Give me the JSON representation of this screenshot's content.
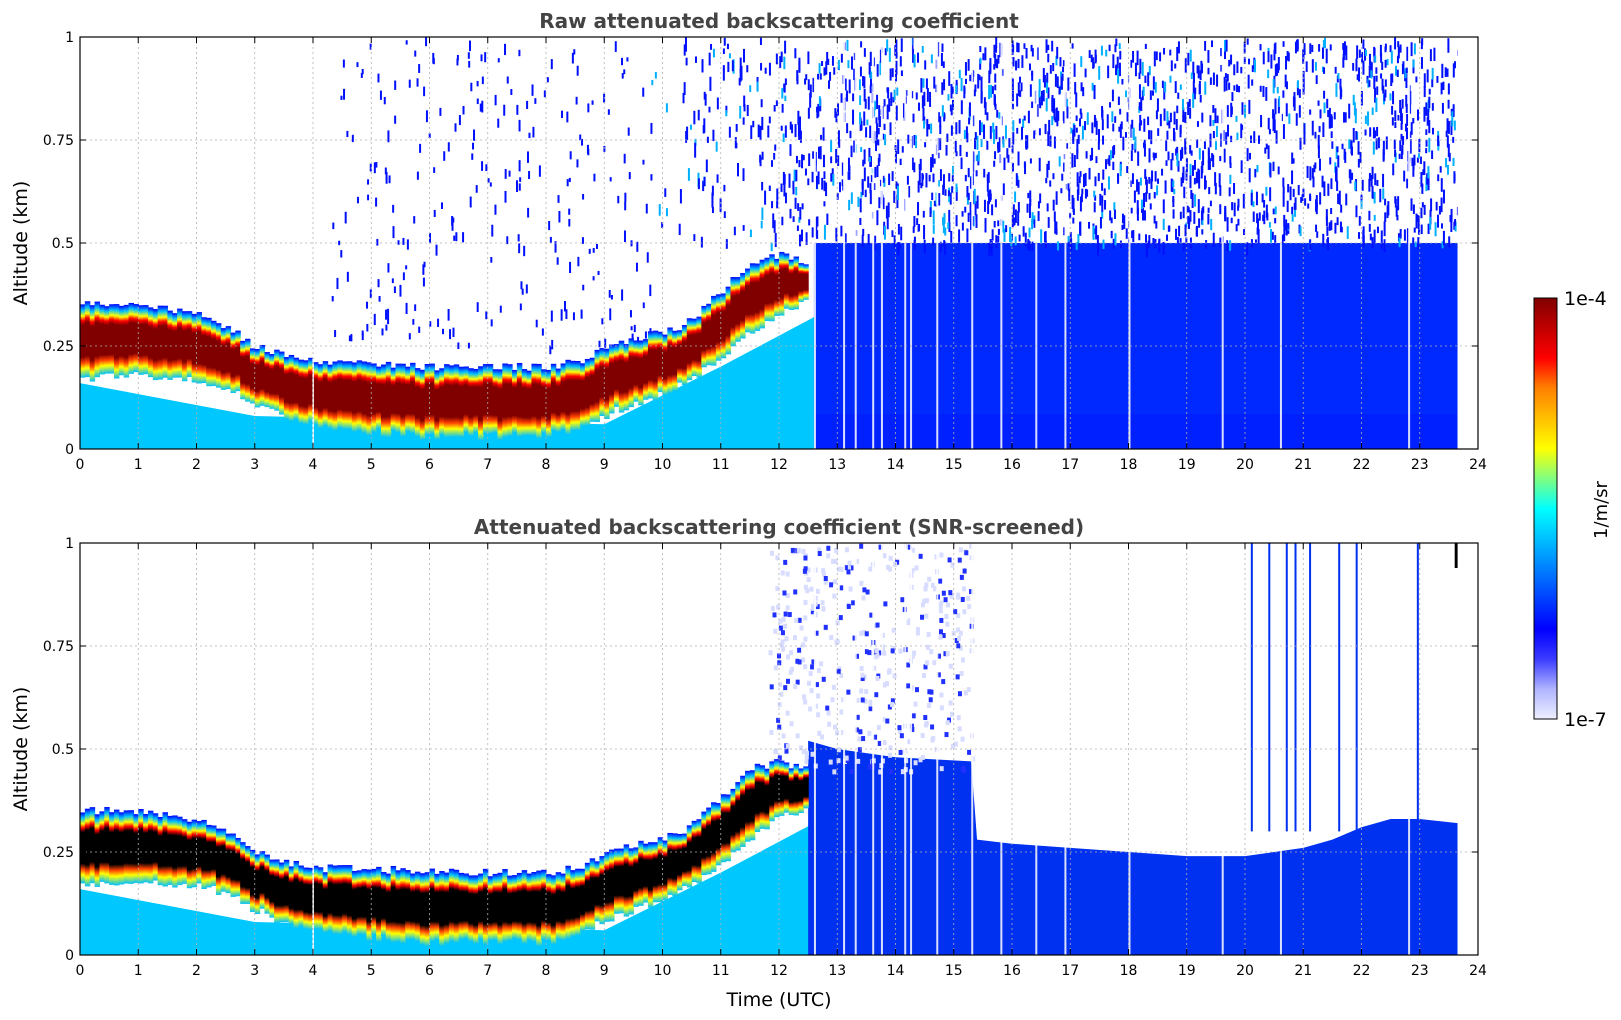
{
  "chart_data": [
    {
      "type": "heatmap",
      "id": "raw",
      "title": "Raw attenuated backscattering coefficient",
      "xlabel": "",
      "ylabel": "Altitude (km)",
      "xlim": [
        0,
        24
      ],
      "ylim": [
        0,
        1
      ],
      "xticks": [
        0,
        1,
        2,
        3,
        4,
        5,
        6,
        7,
        8,
        9,
        10,
        11,
        12,
        13,
        14,
        15,
        16,
        17,
        18,
        19,
        20,
        21,
        22,
        23,
        24
      ],
      "yticks": [
        0,
        0.25,
        0.5,
        0.75,
        1
      ],
      "ytick_labels": [
        "0",
        "0.25",
        "0.5",
        "0.75",
        "1"
      ],
      "grid": true,
      "layer_top_km": [
        [
          0,
          0.35
        ],
        [
          0.5,
          0.35
        ],
        [
          1,
          0.35
        ],
        [
          1.5,
          0.34
        ],
        [
          2,
          0.33
        ],
        [
          2.5,
          0.3
        ],
        [
          3,
          0.25
        ],
        [
          3.5,
          0.23
        ],
        [
          4,
          0.21
        ],
        [
          5,
          0.21
        ],
        [
          6,
          0.2
        ],
        [
          7,
          0.2
        ],
        [
          8,
          0.2
        ],
        [
          8.5,
          0.21
        ],
        [
          9,
          0.24
        ],
        [
          9.5,
          0.27
        ],
        [
          10,
          0.28
        ],
        [
          10.5,
          0.31
        ],
        [
          11,
          0.38
        ],
        [
          11.5,
          0.45
        ],
        [
          12,
          0.47
        ],
        [
          12.5,
          0.45
        ]
      ],
      "layer_bottom_km": [
        [
          0,
          0.17
        ],
        [
          1,
          0.18
        ],
        [
          2,
          0.17
        ],
        [
          2.5,
          0.15
        ],
        [
          3,
          0.11
        ],
        [
          3.5,
          0.08
        ],
        [
          4,
          0.06
        ],
        [
          5,
          0.04
        ],
        [
          6,
          0.03
        ],
        [
          7,
          0.03
        ],
        [
          8,
          0.03
        ],
        [
          8.5,
          0.05
        ],
        [
          9,
          0.08
        ],
        [
          9.5,
          0.11
        ],
        [
          10,
          0.13
        ],
        [
          10.5,
          0.17
        ],
        [
          11,
          0.22
        ],
        [
          11.5,
          0.28
        ],
        [
          12,
          0.33
        ],
        [
          12.5,
          0.36
        ]
      ],
      "noise_start_utc": 10.5,
      "data_end_utc": 23.65
    },
    {
      "type": "heatmap",
      "id": "snr",
      "title": "Attenuated backscattering coefficient (SNR-screened)",
      "xlabel": "Time (UTC)",
      "ylabel": "Altitude (km)",
      "xlim": [
        0,
        24
      ],
      "ylim": [
        0,
        1
      ],
      "xticks": [
        0,
        1,
        2,
        3,
        4,
        5,
        6,
        7,
        8,
        9,
        10,
        11,
        12,
        13,
        14,
        15,
        16,
        17,
        18,
        19,
        20,
        21,
        22,
        23,
        24
      ],
      "yticks": [
        0,
        0.25,
        0.5,
        0.75,
        1
      ],
      "ytick_labels": [
        "0",
        "0.25",
        "0.5",
        "0.75",
        "1"
      ],
      "grid": true,
      "screened_top_km": [
        [
          12.5,
          0.52
        ],
        [
          13,
          0.5
        ],
        [
          14,
          0.48
        ],
        [
          15.3,
          0.47
        ],
        [
          15.4,
          0.28
        ],
        [
          16,
          0.27
        ],
        [
          17,
          0.26
        ],
        [
          18,
          0.25
        ],
        [
          19,
          0.24
        ],
        [
          20,
          0.24
        ],
        [
          20.5,
          0.25
        ],
        [
          21,
          0.26
        ],
        [
          21.5,
          0.28
        ],
        [
          22,
          0.31
        ],
        [
          22.5,
          0.33
        ],
        [
          23,
          0.33
        ],
        [
          23.65,
          0.32
        ]
      ],
      "data_end_utc": 23.65
    }
  ],
  "colorbar": {
    "label": "1/m/sr",
    "min_label": "1e-7",
    "max_label": "1e-4",
    "scale": "log",
    "min": 1e-07,
    "max": 0.0001,
    "colormap": [
      "#eef0ff",
      "#b0b4ff",
      "#3a3aff",
      "#0000ff",
      "#0040ff",
      "#0080ff",
      "#00c0ff",
      "#00ffff",
      "#80ff80",
      "#ffff00",
      "#ffc000",
      "#ff8000",
      "#ff0000",
      "#c00000",
      "#800000"
    ]
  }
}
